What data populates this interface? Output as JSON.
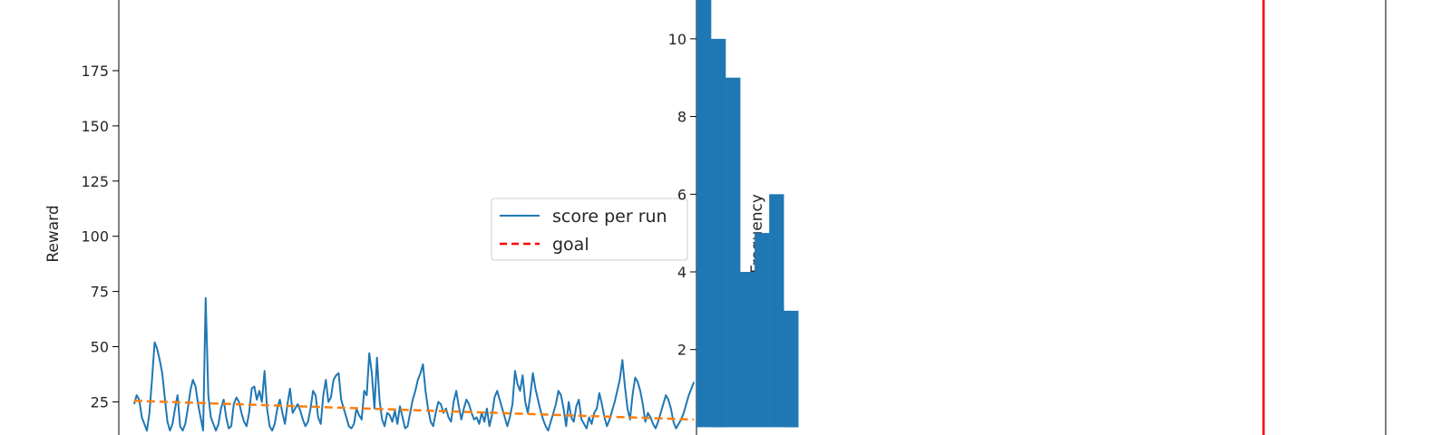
{
  "chart_data": [
    {
      "type": "line",
      "ylabel": "Reward",
      "xlabel": "",
      "title": "",
      "ylim": [
        10,
        207
      ],
      "xlim": [
        -6,
        220
      ],
      "y_ticks": [
        25,
        50,
        75,
        100,
        125,
        150,
        175
      ],
      "legend": {
        "placement": "center-right",
        "entries": [
          "score per run",
          "goal"
        ]
      },
      "colors": {
        "score": "#1f77b4",
        "trend": "#ff7f0e",
        "goal": "#ff0000"
      },
      "series": [
        {
          "name": "score per run",
          "x": [
            0,
            1,
            2,
            3,
            4,
            5,
            6,
            7,
            8,
            9,
            10,
            11,
            12,
            13,
            14,
            15,
            16,
            17,
            18,
            19,
            20,
            21,
            22,
            23,
            24,
            25,
            26,
            27,
            28,
            29,
            30,
            31,
            32,
            33,
            34,
            35,
            36,
            37,
            38,
            39,
            40,
            41,
            42,
            43,
            44,
            45,
            46,
            47,
            48,
            49,
            50,
            51,
            52,
            53,
            54,
            55,
            56,
            57,
            58,
            59,
            60,
            61,
            62,
            63,
            64,
            65,
            66,
            67,
            68,
            69,
            70,
            71,
            72,
            73,
            74,
            75,
            76,
            77,
            78,
            79,
            80,
            81,
            82,
            83,
            84,
            85,
            86,
            87,
            88,
            89,
            90,
            91,
            92,
            93,
            94,
            95,
            96,
            97,
            98,
            99,
            100,
            101,
            102,
            103,
            104,
            105,
            106,
            107,
            108,
            109,
            110,
            111,
            112,
            113,
            114,
            115,
            116,
            117,
            118,
            119,
            120,
            121,
            122,
            123,
            124,
            125,
            126,
            127,
            128,
            129,
            130,
            131,
            132,
            133,
            134,
            135,
            136,
            137,
            138,
            139,
            140,
            141,
            142,
            143,
            144,
            145,
            146,
            147,
            148,
            149,
            150,
            151,
            152,
            153,
            154,
            155,
            156,
            157,
            158,
            159,
            160,
            161,
            162,
            163,
            164,
            165,
            166,
            167,
            168,
            169,
            170,
            171,
            172,
            173,
            174,
            175,
            176,
            177,
            178,
            179,
            180,
            181,
            182,
            183,
            184,
            185,
            186,
            187,
            188,
            189,
            190,
            191,
            192,
            193,
            194,
            195,
            196,
            197,
            198,
            199,
            200,
            201,
            202,
            203,
            204,
            205,
            206,
            207,
            208,
            209,
            210,
            211,
            212,
            213,
            214,
            215,
            216,
            217,
            218,
            219
          ],
          "values": [
            24,
            28,
            26,
            18,
            15,
            12,
            20,
            35,
            52,
            49,
            44,
            38,
            27,
            16,
            12,
            15,
            22,
            28,
            14,
            12,
            15,
            22,
            30,
            35,
            32,
            24,
            18,
            12,
            72,
            28,
            18,
            15,
            12,
            15,
            22,
            26,
            18,
            13,
            14,
            24,
            27,
            25,
            20,
            16,
            14,
            20,
            31,
            32,
            26,
            30,
            25,
            39,
            22,
            14,
            12,
            15,
            22,
            26,
            20,
            15,
            24,
            31,
            20,
            22,
            24,
            21,
            17,
            14,
            16,
            22,
            30,
            28,
            18,
            15,
            28,
            35,
            25,
            27,
            35,
            37,
            38,
            26,
            22,
            18,
            14,
            13,
            15,
            22,
            19,
            17,
            30,
            28,
            47,
            38,
            22,
            45,
            26,
            17,
            14,
            20,
            19,
            16,
            21,
            15,
            23,
            18,
            13,
            14,
            20,
            26,
            30,
            35,
            38,
            42,
            30,
            22,
            16,
            14,
            20,
            25,
            24,
            20,
            22,
            18,
            16,
            25,
            30,
            23,
            17,
            22,
            26,
            24,
            20,
            17,
            18,
            15,
            20,
            16,
            22,
            14,
            19,
            27,
            30,
            26,
            22,
            18,
            14,
            18,
            24,
            39,
            33,
            30,
            37,
            25,
            20,
            28,
            38,
            31,
            26,
            21,
            17,
            14,
            12,
            16,
            20,
            24,
            30,
            28,
            22,
            14,
            25,
            18,
            16,
            23,
            26,
            17,
            15,
            13,
            18,
            15,
            20,
            22,
            29,
            24,
            18,
            14,
            17,
            21,
            25,
            30,
            35,
            44,
            32,
            22,
            17,
            28,
            36,
            34,
            30,
            24,
            16,
            20,
            18,
            15,
            13,
            16,
            20,
            24,
            28,
            26,
            22,
            16,
            13,
            15,
            17,
            20,
            24,
            28,
            31,
            34
          ]
        },
        {
          "name": "",
          "x": [
            0,
            219
          ],
          "values": [
            25.5,
            17
          ]
        }
      ]
    },
    {
      "type": "bar",
      "ylabel": "Frequency",
      "xlabel": "",
      "title": "",
      "ylim": [
        -0.2,
        11
      ],
      "xlim": [
        0,
        237
      ],
      "y_ticks": [
        2,
        4,
        6,
        8,
        10
      ],
      "bins": [
        {
          "x0": 0,
          "x1": 5,
          "value": 11
        },
        {
          "x0": 5,
          "x1": 10,
          "value": 10
        },
        {
          "x0": 10,
          "x1": 15,
          "value": 9
        },
        {
          "x0": 15,
          "x1": 20,
          "value": 4
        },
        {
          "x0": 20,
          "x1": 25,
          "value": 5
        },
        {
          "x0": 25,
          "x1": 30,
          "value": 6
        },
        {
          "x0": 30,
          "x1": 35,
          "value": 3
        }
      ],
      "goal": 195,
      "colors": {
        "bars": "#1f77b4",
        "goal": "#ff0000"
      }
    }
  ]
}
